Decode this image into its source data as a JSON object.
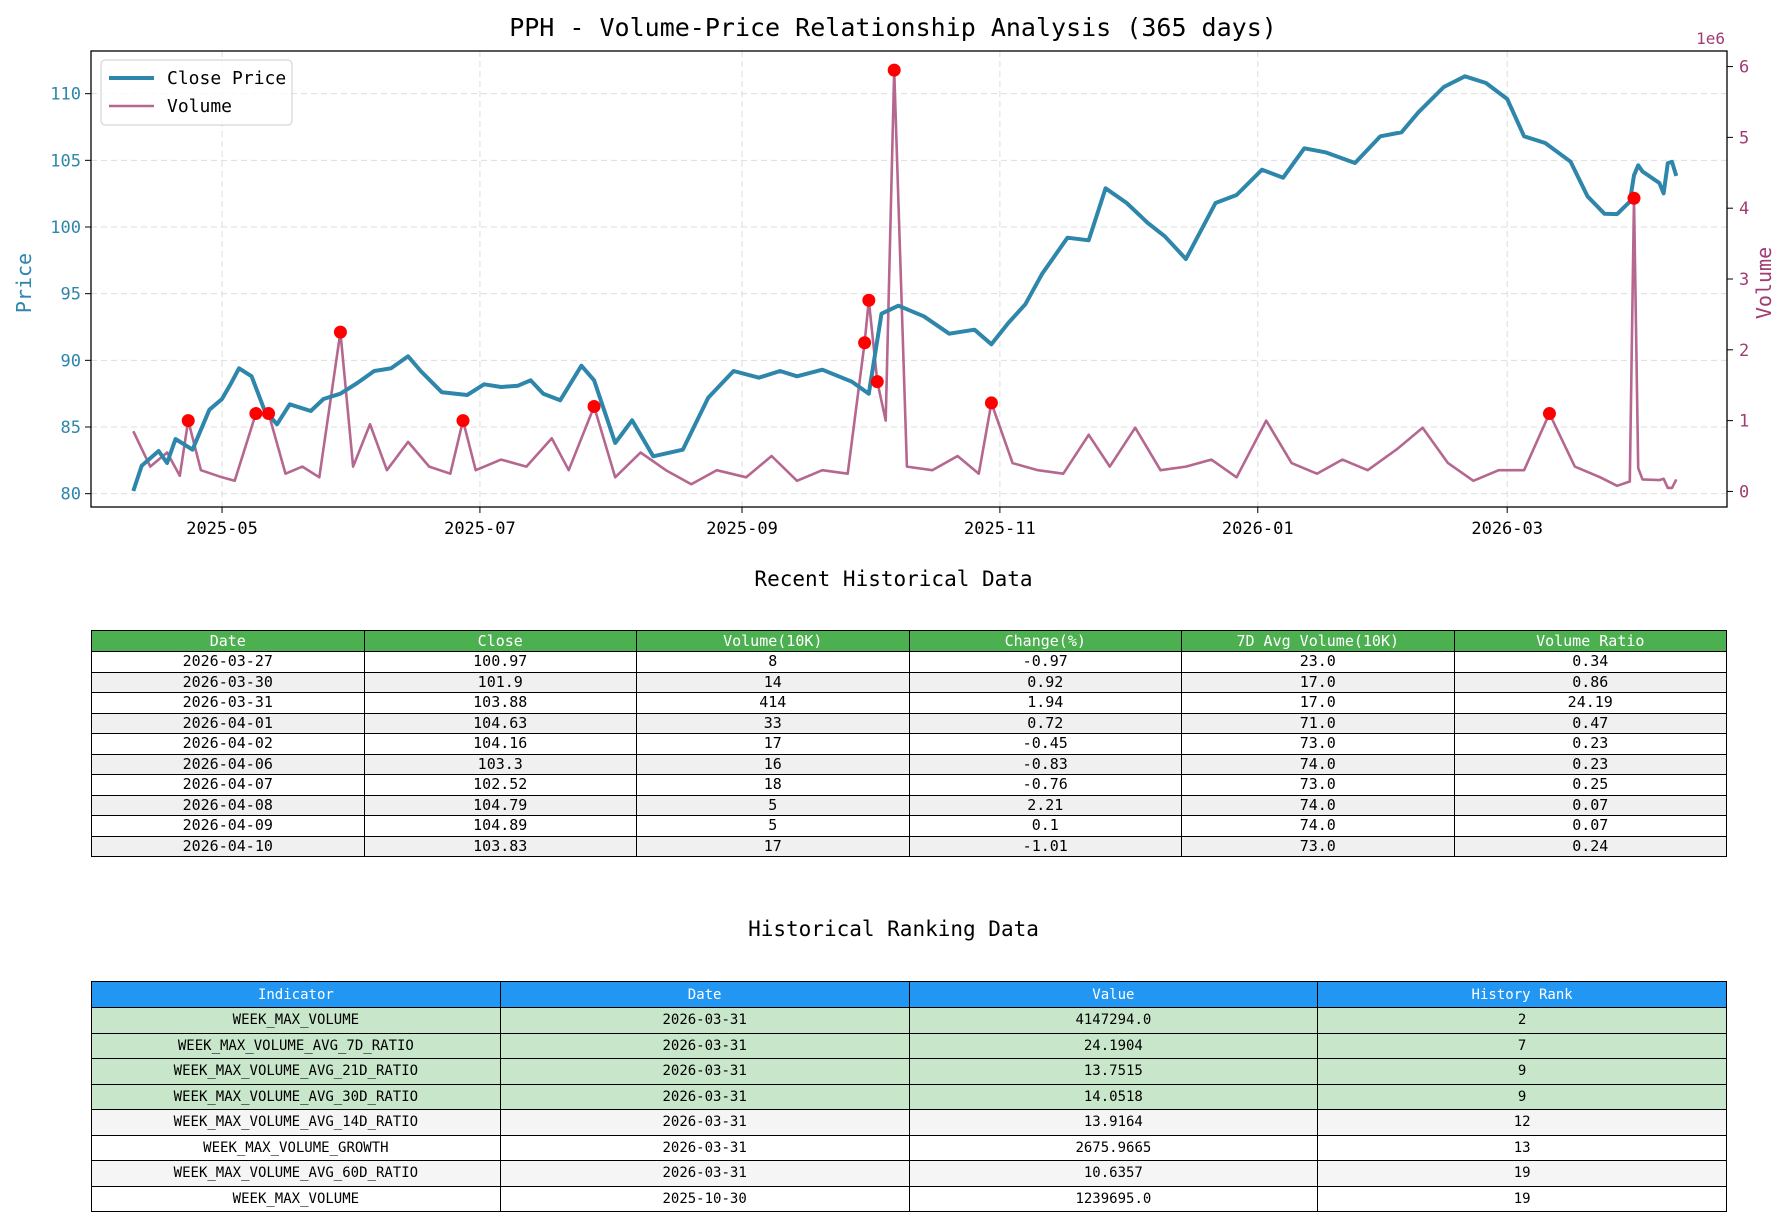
{
  "chart_data": {
    "type": "line",
    "title": "PPH - Volume-Price Relationship Analysis (365 days)",
    "ylabel": "Price",
    "y2label": "Volume",
    "y2_offset_label": "1e6",
    "ylim": [
      79,
      113.2
    ],
    "y2lim": [
      -0.22,
      6.22
    ],
    "xlim": [
      "2025-03-31",
      "2026-04-22"
    ],
    "grid": true,
    "legend_position": "top-left",
    "colors": {
      "price": "#2e86ab",
      "volume": "#b5678f",
      "spike": "#ff0000"
    },
    "x_ticks": [
      "2025-05-01",
      "2025-07-01",
      "2025-09-01",
      "2025-11-01",
      "2026-01-01",
      "2026-03-01"
    ],
    "x_tick_labels": [
      "2025-05",
      "2025-07",
      "2025-09",
      "2025-11",
      "2026-01",
      "2026-03"
    ],
    "y_ticks": [
      80,
      85,
      90,
      95,
      100,
      105,
      110
    ],
    "y2_ticks": [
      0,
      1,
      2,
      3,
      4,
      5,
      6
    ],
    "series": [
      {
        "name": "Close Price",
        "axis": "left",
        "x": [
          "2025-04-10",
          "2025-04-12",
          "2025-04-16",
          "2025-04-18",
          "2025-04-20",
          "2025-04-24",
          "2025-04-28",
          "2025-05-01",
          "2025-05-03",
          "2025-05-05",
          "2025-05-08",
          "2025-05-11",
          "2025-05-14",
          "2025-05-17",
          "2025-05-22",
          "2025-05-25",
          "2025-05-29",
          "2025-06-02",
          "2025-06-06",
          "2025-06-10",
          "2025-06-14",
          "2025-06-17",
          "2025-06-22",
          "2025-06-28",
          "2025-07-02",
          "2025-07-06",
          "2025-07-10",
          "2025-07-13",
          "2025-07-16",
          "2025-07-20",
          "2025-07-25",
          "2025-07-28",
          "2025-08-02",
          "2025-08-06",
          "2025-08-11",
          "2025-08-18",
          "2025-08-24",
          "2025-08-30",
          "2025-09-05",
          "2025-09-10",
          "2025-09-14",
          "2025-09-20",
          "2025-09-27",
          "2025-10-01",
          "2025-10-04",
          "2025-10-08",
          "2025-10-14",
          "2025-10-20",
          "2025-10-26",
          "2025-10-30",
          "2025-11-03",
          "2025-11-07",
          "2025-11-11",
          "2025-11-17",
          "2025-11-22",
          "2025-11-26",
          "2025-12-01",
          "2025-12-06",
          "2025-12-10",
          "2025-12-15",
          "2025-12-22",
          "2025-12-27",
          "2026-01-02",
          "2026-01-07",
          "2026-01-12",
          "2026-01-17",
          "2026-01-24",
          "2026-01-30",
          "2026-02-04",
          "2026-02-08",
          "2026-02-14",
          "2026-02-19",
          "2026-02-24",
          "2026-03-01",
          "2026-03-05",
          "2026-03-10",
          "2026-03-16",
          "2026-03-20",
          "2026-03-24",
          "2026-03-27",
          "2026-03-30",
          "2026-03-31",
          "2026-04-01",
          "2026-04-02",
          "2026-04-06",
          "2026-04-07",
          "2026-04-08",
          "2026-04-09",
          "2026-04-10"
        ],
        "values": [
          80.2,
          82.1,
          83.2,
          82.3,
          84.1,
          83.3,
          86.3,
          87.1,
          88.2,
          89.4,
          88.8,
          86.3,
          85.2,
          86.7,
          86.2,
          87.1,
          87.5,
          88.3,
          89.2,
          89.4,
          90.3,
          89.2,
          87.6,
          87.4,
          88.2,
          88.0,
          88.1,
          88.5,
          87.5,
          87.0,
          89.6,
          88.5,
          83.8,
          85.5,
          82.8,
          83.3,
          87.2,
          89.2,
          88.7,
          89.2,
          88.8,
          89.3,
          88.4,
          87.5,
          93.5,
          94.1,
          93.3,
          92.0,
          92.3,
          91.2,
          92.8,
          94.2,
          96.5,
          99.2,
          99.0,
          102.9,
          101.8,
          100.3,
          99.3,
          97.6,
          101.8,
          102.4,
          104.3,
          103.7,
          105.9,
          105.6,
          104.8,
          106.8,
          107.1,
          108.6,
          110.5,
          111.3,
          110.8,
          109.6,
          106.8,
          106.3,
          104.9,
          102.3,
          101.0,
          100.97,
          101.9,
          103.88,
          104.63,
          104.16,
          103.3,
          102.52,
          104.79,
          104.89,
          103.83
        ]
      },
      {
        "name": "Volume",
        "axis": "right",
        "x": [
          "2025-04-10",
          "2025-04-14",
          "2025-04-18",
          "2025-04-21",
          "2025-04-23",
          "2025-04-26",
          "2025-05-01",
          "2025-05-04",
          "2025-05-09",
          "2025-05-12",
          "2025-05-16",
          "2025-05-20",
          "2025-05-24",
          "2025-05-29",
          "2025-06-01",
          "2025-06-05",
          "2025-06-09",
          "2025-06-14",
          "2025-06-19",
          "2025-06-24",
          "2025-06-27",
          "2025-06-30",
          "2025-07-06",
          "2025-07-12",
          "2025-07-18",
          "2025-07-22",
          "2025-07-28",
          "2025-08-02",
          "2025-08-08",
          "2025-08-14",
          "2025-08-20",
          "2025-08-26",
          "2025-09-02",
          "2025-09-08",
          "2025-09-14",
          "2025-09-20",
          "2025-09-26",
          "2025-09-30",
          "2025-10-01",
          "2025-10-03",
          "2025-10-05",
          "2025-10-07",
          "2025-10-10",
          "2025-10-16",
          "2025-10-22",
          "2025-10-27",
          "2025-10-30",
          "2025-11-04",
          "2025-11-10",
          "2025-11-16",
          "2025-11-22",
          "2025-11-27",
          "2025-12-03",
          "2025-12-09",
          "2025-12-15",
          "2025-12-21",
          "2025-12-27",
          "2026-01-03",
          "2026-01-09",
          "2026-01-15",
          "2026-01-21",
          "2026-01-27",
          "2026-02-03",
          "2026-02-09",
          "2026-02-15",
          "2026-02-21",
          "2026-02-27",
          "2026-03-05",
          "2026-03-11",
          "2026-03-17",
          "2026-03-23",
          "2026-03-27",
          "2026-03-30",
          "2026-03-31",
          "2026-04-01",
          "2026-04-02",
          "2026-04-06",
          "2026-04-07",
          "2026-04-08",
          "2026-04-09",
          "2026-04-10"
        ],
        "values": [
          0.85,
          0.35,
          0.55,
          0.22,
          1.0,
          0.3,
          0.2,
          0.15,
          1.1,
          1.1,
          0.25,
          0.35,
          0.2,
          2.25,
          0.35,
          0.95,
          0.3,
          0.7,
          0.35,
          0.25,
          1.0,
          0.3,
          0.45,
          0.35,
          0.75,
          0.3,
          1.2,
          0.2,
          0.55,
          0.3,
          0.1,
          0.3,
          0.2,
          0.5,
          0.15,
          0.3,
          0.25,
          2.1,
          2.7,
          1.55,
          1.0,
          5.95,
          0.35,
          0.3,
          0.5,
          0.25,
          1.25,
          0.4,
          0.3,
          0.25,
          0.8,
          0.35,
          0.9,
          0.3,
          0.35,
          0.45,
          0.2,
          1.0,
          0.4,
          0.25,
          0.45,
          0.3,
          0.6,
          0.9,
          0.4,
          0.15,
          0.3,
          0.3,
          1.1,
          0.35,
          0.2,
          0.08,
          0.14,
          4.14,
          0.33,
          0.17,
          0.16,
          0.18,
          0.05,
          0.05,
          0.17
        ]
      }
    ],
    "spike_points": {
      "x": [
        "2025-04-23",
        "2025-05-09",
        "2025-05-12",
        "2025-05-29",
        "2025-06-27",
        "2025-07-28",
        "2025-09-30",
        "2025-10-01",
        "2025-10-03",
        "2025-10-07",
        "2025-10-30",
        "2026-03-11",
        "2026-03-31"
      ],
      "values": [
        1.0,
        1.1,
        1.1,
        2.25,
        1.0,
        1.2,
        2.1,
        2.7,
        1.55,
        5.95,
        1.25,
        1.1,
        4.14
      ]
    }
  },
  "recent_section": {
    "title": "Recent Historical Data",
    "headers": [
      "Date",
      "Close",
      "Volume(10K)",
      "Change(%)",
      "7D Avg Volume(10K)",
      "Volume Ratio"
    ],
    "rows": [
      [
        "2026-03-27",
        "100.97",
        "8",
        "-0.97",
        "23.0",
        "0.34"
      ],
      [
        "2026-03-30",
        "101.9",
        "14",
        "0.92",
        "17.0",
        "0.86"
      ],
      [
        "2026-03-31",
        "103.88",
        "414",
        "1.94",
        "17.0",
        "24.19"
      ],
      [
        "2026-04-01",
        "104.63",
        "33",
        "0.72",
        "71.0",
        "0.47"
      ],
      [
        "2026-04-02",
        "104.16",
        "17",
        "-0.45",
        "73.0",
        "0.23"
      ],
      [
        "2026-04-06",
        "103.3",
        "16",
        "-0.83",
        "74.0",
        "0.23"
      ],
      [
        "2026-04-07",
        "102.52",
        "18",
        "-0.76",
        "73.0",
        "0.25"
      ],
      [
        "2026-04-08",
        "104.79",
        "5",
        "2.21",
        "74.0",
        "0.07"
      ],
      [
        "2026-04-09",
        "104.89",
        "5",
        "0.1",
        "74.0",
        "0.07"
      ],
      [
        "2026-04-10",
        "103.83",
        "17",
        "-1.01",
        "73.0",
        "0.24"
      ]
    ]
  },
  "ranking_section": {
    "title": "Historical Ranking Data",
    "headers": [
      "Indicator",
      "Date",
      "Value",
      "History Rank"
    ],
    "rows": [
      [
        "WEEK_MAX_VOLUME",
        "2026-03-31",
        "4147294.0",
        "2"
      ],
      [
        "WEEK_MAX_VOLUME_AVG_7D_RATIO",
        "2026-03-31",
        "24.1904",
        "7"
      ],
      [
        "WEEK_MAX_VOLUME_AVG_21D_RATIO",
        "2026-03-31",
        "13.7515",
        "9"
      ],
      [
        "WEEK_MAX_VOLUME_AVG_30D_RATIO",
        "2026-03-31",
        "14.0518",
        "9"
      ],
      [
        "WEEK_MAX_VOLUME_AVG_14D_RATIO",
        "2026-03-31",
        "13.9164",
        "12"
      ],
      [
        "WEEK_MAX_VOLUME_GROWTH",
        "2026-03-31",
        "2675.9665",
        "13"
      ],
      [
        "WEEK_MAX_VOLUME_AVG_60D_RATIO",
        "2026-03-31",
        "10.6357",
        "19"
      ],
      [
        "WEEK_MAX_VOLUME",
        "2025-10-30",
        "1239695.0",
        "19"
      ]
    ],
    "highlight_top_rows": 4
  }
}
